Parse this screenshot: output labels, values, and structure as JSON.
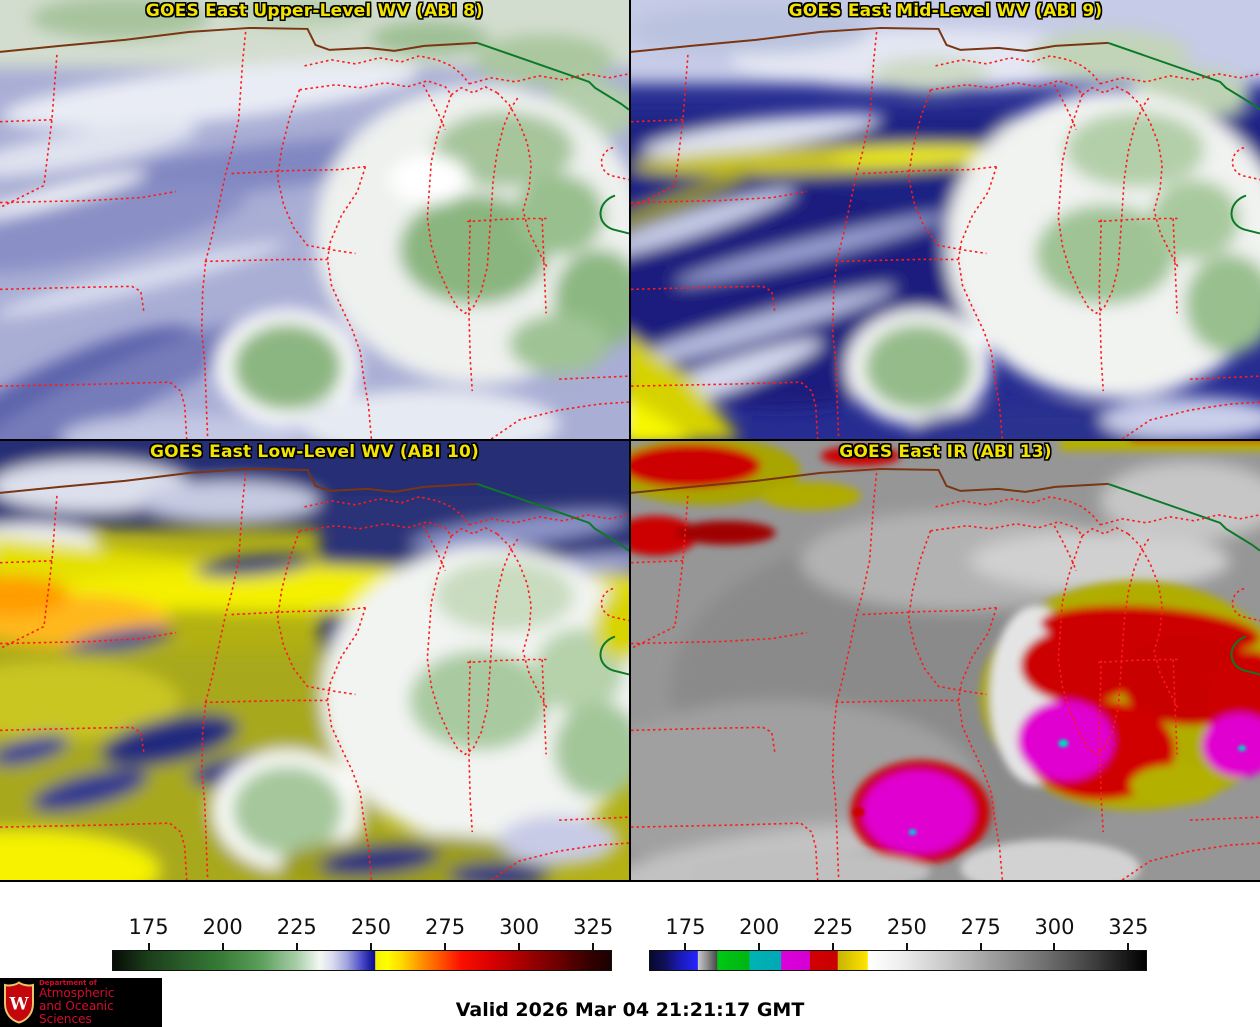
{
  "panels": [
    {
      "title": "GOES East Upper-Level WV (ABI 8)"
    },
    {
      "title": "GOES East Mid-Level WV (ABI 9)"
    },
    {
      "title": "GOES East Low-Level WV (ABI 10)"
    },
    {
      "title": "GOES East IR (ABI 13)"
    }
  ],
  "style": {
    "panel_title_color": "#f2e300",
    "state_border_color": "#ff1a1a",
    "national_border_color": "#7a3512",
    "green_line_color": "#0b7a28"
  },
  "colorbars": [
    {
      "name": "water-vapor-colorbar",
      "range": [
        163,
        331
      ],
      "ticks": [
        175,
        200,
        225,
        250,
        275,
        300,
        325
      ],
      "stops": [
        [
          "0%",
          "#060c06"
        ],
        [
          "7%",
          "#1b3d1b"
        ],
        [
          "14%",
          "#295c29"
        ],
        [
          "22%",
          "#377d37"
        ],
        [
          "30%",
          "#5ea05e"
        ],
        [
          "37%",
          "#a9cfa9"
        ],
        [
          "41.5%",
          "#f2f7f2"
        ],
        [
          "44%",
          "#dcdcf0"
        ],
        [
          "47%",
          "#a0a4dc"
        ],
        [
          "50%",
          "#4a4ac8"
        ],
        [
          "52.4%",
          "#0c0c96"
        ],
        [
          "52.6%",
          "#16169c"
        ],
        [
          "52.7%",
          "#f0f000"
        ],
        [
          "55%",
          "#ffff00"
        ],
        [
          "58%",
          "#ffd800"
        ],
        [
          "62%",
          "#ff9000"
        ],
        [
          "66%",
          "#ff5000"
        ],
        [
          "70%",
          "#fa0f00"
        ],
        [
          "76%",
          "#d90000"
        ],
        [
          "82%",
          "#a80000"
        ],
        [
          "89%",
          "#700000"
        ],
        [
          "96%",
          "#320000"
        ],
        [
          "100%",
          "#1c0000"
        ]
      ]
    },
    {
      "name": "infrared-colorbar",
      "range": [
        163,
        331
      ],
      "ticks": [
        175,
        200,
        225,
        250,
        275,
        300,
        325
      ],
      "stops": [
        [
          "0%",
          "#08082e"
        ],
        [
          "3%",
          "#10105a"
        ],
        [
          "6%",
          "#1a1ab4"
        ],
        [
          "9%",
          "#2222f0"
        ],
        [
          "9.6%",
          "#2424ff"
        ],
        [
          "9.7%",
          "#c8c8c8"
        ],
        [
          "11.5%",
          "#8e8e8e"
        ],
        [
          "13.5%",
          "#4a4a4a"
        ],
        [
          "13.6%",
          "#00c814"
        ],
        [
          "20%",
          "#00b414"
        ],
        [
          "20.1%",
          "#00b4b4"
        ],
        [
          "26.4%",
          "#00a8b4"
        ],
        [
          "26.5%",
          "#dc00dc"
        ],
        [
          "32.2%",
          "#d200d2"
        ],
        [
          "32.3%",
          "#d20000"
        ],
        [
          "37.8%",
          "#c80000"
        ],
        [
          "37.9%",
          "#c8b400"
        ],
        [
          "43.8%",
          "#ffe400"
        ],
        [
          "44%",
          "#ffffff"
        ],
        [
          "50%",
          "#f0f0f0"
        ],
        [
          "60%",
          "#c8c8c8"
        ],
        [
          "70%",
          "#9a9a9a"
        ],
        [
          "80%",
          "#6e6e6e"
        ],
        [
          "90%",
          "#3c3c3c"
        ],
        [
          "100%",
          "#000000"
        ]
      ]
    }
  ],
  "footer": {
    "timestamp": "Valid 2026 Mar 04 21:21:17 GMT"
  },
  "logo": {
    "monogram": "W",
    "dept": "Department of",
    "line1": "Atmospheric",
    "line2": "and Oceanic Sciences"
  }
}
